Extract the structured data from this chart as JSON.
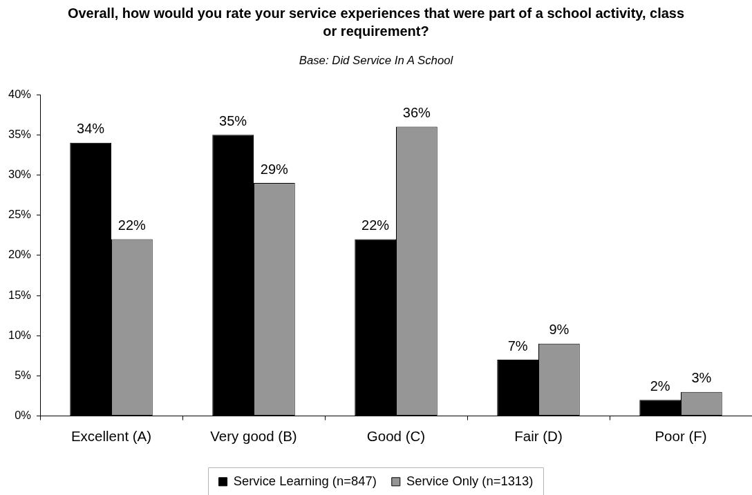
{
  "chart_data": {
    "type": "bar",
    "title": "Overall, how would you rate your service experiences that were part of a school activity, class or requirement?",
    "subtitle": "Base: Did Service In A School",
    "categories": [
      "Excellent (A)",
      "Very good (B)",
      "Good (C)",
      "Fair (D)",
      "Poor (F)"
    ],
    "series": [
      {
        "name": "Service Learning (n=847)",
        "color": "#000000",
        "values": [
          34,
          35,
          22,
          7,
          2
        ],
        "value_labels": [
          "34%",
          "35%",
          "22%",
          "7%",
          "2%"
        ]
      },
      {
        "name": "Service Only (n=1313)",
        "color": "#969696",
        "values": [
          22,
          29,
          36,
          9,
          3
        ],
        "value_labels": [
          "22%",
          "29%",
          "36%",
          "9%",
          "3%"
        ]
      }
    ],
    "ylim": [
      0,
      40
    ],
    "yticks": [
      {
        "value": 0,
        "label": "0%"
      },
      {
        "value": 5,
        "label": "5%"
      },
      {
        "value": 10,
        "label": "10%"
      },
      {
        "value": 15,
        "label": "15%"
      },
      {
        "value": 20,
        "label": "20%"
      },
      {
        "value": 25,
        "label": "25%"
      },
      {
        "value": 30,
        "label": "30%"
      },
      {
        "value": 35,
        "label": "35%"
      },
      {
        "value": 40,
        "label": "40%"
      }
    ],
    "grid": false,
    "legend": "bottom"
  }
}
